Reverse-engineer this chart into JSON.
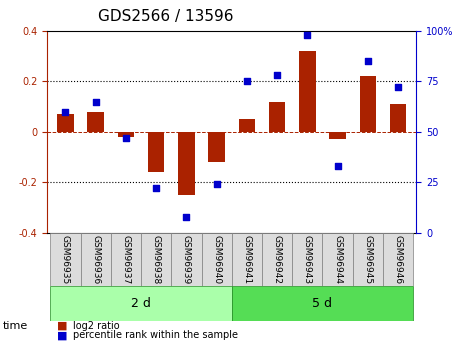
{
  "title": "GDS2566 / 13596",
  "samples": [
    "GSM96935",
    "GSM96936",
    "GSM96937",
    "GSM96938",
    "GSM96939",
    "GSM96940",
    "GSM96941",
    "GSM96942",
    "GSM96943",
    "GSM96944",
    "GSM96945",
    "GSM96946"
  ],
  "log2_ratio": [
    0.07,
    0.08,
    -0.02,
    -0.16,
    -0.25,
    -0.12,
    0.05,
    0.12,
    0.32,
    -0.03,
    0.22,
    0.11
  ],
  "percentile_rank": [
    60,
    65,
    47,
    22,
    8,
    24,
    75,
    78,
    98,
    33,
    85,
    72
  ],
  "groups": [
    {
      "label": "2 d",
      "start": 0,
      "end": 6
    },
    {
      "label": "5 d",
      "start": 6,
      "end": 12
    }
  ],
  "group_colors": [
    "#AAFFAA",
    "#55DD55"
  ],
  "bar_color": "#AA2200",
  "dot_color": "#0000CC",
  "ylim": [
    -0.4,
    0.4
  ],
  "y2lim": [
    0,
    100
  ],
  "yticks": [
    -0.4,
    -0.2,
    0.0,
    0.2,
    0.4
  ],
  "y2ticks": [
    0,
    25,
    50,
    75,
    100
  ],
  "dotted_lines": [
    -0.2,
    0.2
  ],
  "legend_bar_label": "log2 ratio",
  "legend_dot_label": "percentile rank within the sample",
  "time_label": "time"
}
